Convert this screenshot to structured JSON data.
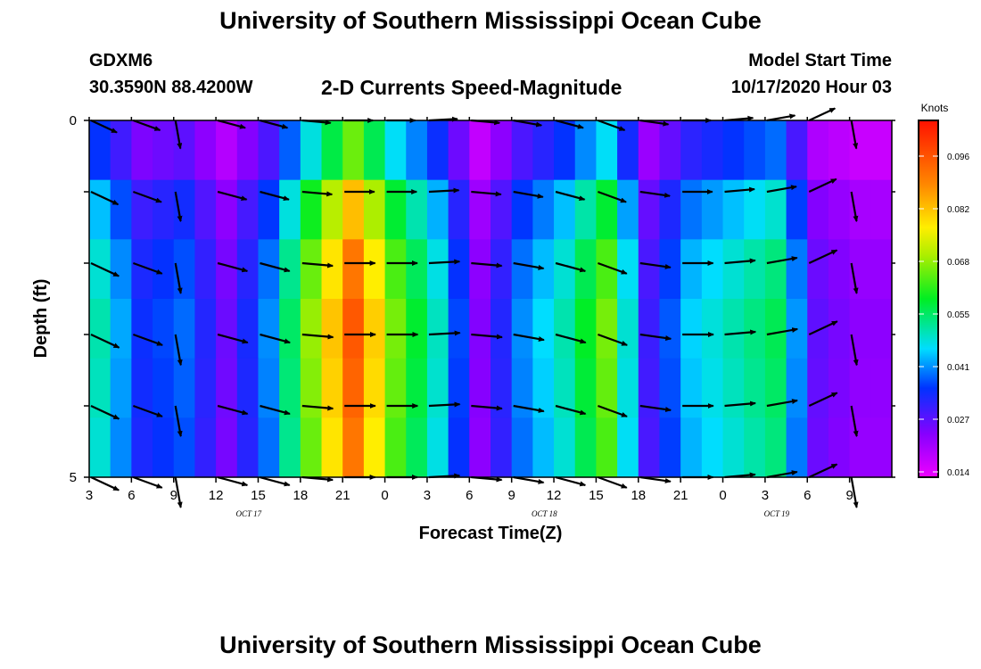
{
  "header": {
    "title_top": "University of Southern Mississippi Ocean Cube",
    "title_bottom": "University of Southern Mississippi Ocean Cube",
    "station_id": "GDXM6",
    "coordinates": "30.3590N 88.4200W",
    "subtitle": "2-D Currents Speed-Magnitude",
    "model_start_label": "Model Start Time",
    "model_start_value": "10/17/2020 Hour 03"
  },
  "chart_data": {
    "type": "heatmap",
    "title": "2-D Currents Speed-Magnitude",
    "xlabel": "Forecast Time(Z)",
    "ylabel": "Depth (ft)",
    "ylim": [
      0,
      5
    ],
    "y_tick_labels": [
      "0",
      "5"
    ],
    "x_tick_labels": [
      "3",
      "6",
      "9",
      "12",
      "15",
      "18",
      "21",
      "0",
      "3",
      "6",
      "9",
      "12",
      "15",
      "18",
      "21",
      "0",
      "3",
      "6",
      "9"
    ],
    "date_labels": [
      {
        "text": "OCT 17",
        "at_tick": 4
      },
      {
        "text": "OCT 18",
        "at_tick": 11
      },
      {
        "text": "OCT 19",
        "at_tick": 16.5
      }
    ],
    "colorbar": {
      "unit_label": "Knots",
      "tick_labels": [
        "0.096",
        "0.082",
        "0.068",
        "0.055",
        "0.041",
        "0.027",
        "0.014"
      ],
      "min": 0.01,
      "max": 0.106
    },
    "column_speeds": [
      0.045,
      0.03,
      0.034,
      0.022,
      0.036,
      0.062,
      0.087,
      0.06,
      0.044,
      0.02,
      0.036,
      0.045,
      0.06,
      0.026,
      0.04,
      0.045,
      0.05,
      0.023,
      0.019
    ],
    "row_multipliers": [
      0.75,
      0.95,
      1.05,
      1.1,
      1.08,
      1.05
    ],
    "arrow_angles_deg": [
      25,
      20,
      80,
      15,
      15,
      5,
      0,
      0,
      -3,
      5,
      10,
      15,
      20,
      8,
      0,
      -5,
      -10,
      -25,
      80
    ]
  }
}
